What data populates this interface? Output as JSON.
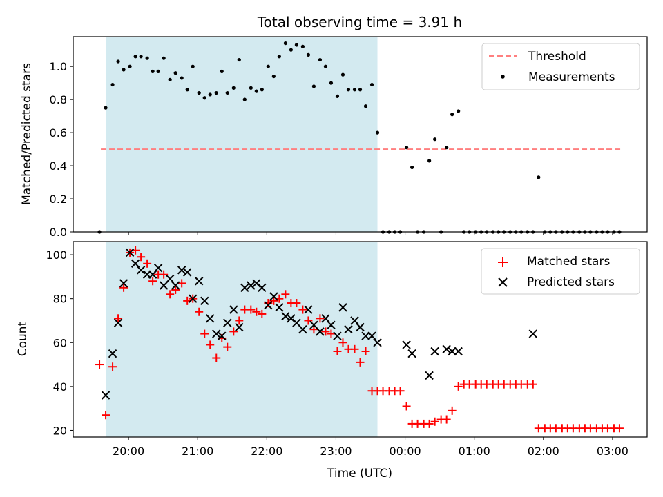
{
  "title": "Total observing time = 3.91 h",
  "chart_data": [
    {
      "type": "scatter",
      "panel": "top",
      "ylabel": "Matched/Predicted stars",
      "ylim": [
        0,
        1.18
      ],
      "yticks": [
        "0.0",
        "0.2",
        "0.4",
        "0.6",
        "0.8",
        "1.0"
      ],
      "xlim": [
        19.2,
        27.5
      ],
      "grid": false,
      "legend_position": "top-right",
      "shaded_interval": {
        "x_start": 19.67,
        "x_end": 23.6,
        "color": "#d3eaf0"
      },
      "threshold": {
        "name": "Threshold",
        "value": 0.5,
        "x_start": 19.6,
        "x_end": 27.15,
        "color": "#ff7f7f"
      },
      "series": [
        {
          "name": "Measurements",
          "color": "#000000",
          "marker": "dot",
          "x": [
            19.58,
            19.67,
            19.77,
            19.85,
            19.93,
            20.02,
            20.1,
            20.18,
            20.27,
            20.35,
            20.43,
            20.51,
            20.6,
            20.68,
            20.77,
            20.85,
            20.93,
            21.02,
            21.1,
            21.18,
            21.27,
            21.35,
            21.43,
            21.52,
            21.6,
            21.68,
            21.77,
            21.85,
            21.93,
            22.02,
            22.1,
            22.18,
            22.27,
            22.35,
            22.43,
            22.52,
            22.6,
            22.68,
            22.77,
            22.85,
            22.93,
            23.02,
            23.1,
            23.18,
            23.27,
            23.35,
            23.43,
            23.52,
            23.6,
            23.68,
            23.77,
            23.85,
            23.93,
            24.02,
            24.1,
            24.18,
            24.27,
            24.35,
            24.43,
            24.52,
            24.6,
            24.68,
            24.77,
            24.85,
            24.93,
            25.02,
            25.1,
            25.18,
            25.27,
            25.35,
            25.43,
            25.52,
            25.6,
            25.68,
            25.77,
            25.85,
            25.93,
            26.02,
            26.1,
            26.18,
            26.27,
            26.35,
            26.43,
            26.52,
            26.6,
            26.68,
            26.77,
            26.85,
            26.93,
            27.02,
            27.1
          ],
          "y": [
            0.0,
            0.75,
            0.89,
            1.03,
            0.98,
            1.0,
            1.06,
            1.06,
            1.05,
            0.97,
            0.97,
            1.05,
            0.92,
            0.96,
            0.93,
            0.86,
            1.0,
            0.84,
            0.81,
            0.83,
            0.84,
            0.97,
            0.84,
            0.87,
            1.04,
            0.8,
            0.87,
            0.85,
            0.86,
            1.0,
            0.94,
            1.06,
            1.14,
            1.1,
            1.13,
            1.12,
            1.07,
            0.88,
            1.04,
            1.0,
            0.9,
            0.82,
            0.95,
            0.86,
            0.86,
            0.86,
            0.76,
            0.89,
            0.6,
            0.0,
            0.0,
            0.0,
            0.0,
            0.51,
            0.39,
            0.0,
            0.0,
            0.43,
            0.56,
            0.0,
            0.51,
            0.71,
            0.73,
            0.0,
            0.0,
            0.0,
            0.0,
            0.0,
            0.0,
            0.0,
            0.0,
            0.0,
            0.0,
            0.0,
            0.0,
            0.0,
            0.33,
            0.0,
            0.0,
            0.0,
            0.0,
            0.0,
            0.0,
            0.0,
            0.0,
            0.0,
            0.0,
            0.0,
            0.0,
            0.0,
            0.0
          ]
        }
      ]
    },
    {
      "type": "scatter",
      "panel": "bottom",
      "xlabel": "Time (UTC)",
      "ylabel": "Count",
      "ylim": [
        17,
        106
      ],
      "yticks": [
        "20",
        "40",
        "60",
        "80",
        "100"
      ],
      "xlim": [
        19.2,
        27.5
      ],
      "xtick_values": [
        20,
        21,
        22,
        23,
        24,
        25,
        26,
        27
      ],
      "xtick_labels": [
        "20:00",
        "21:00",
        "22:00",
        "23:00",
        "00:00",
        "01:00",
        "02:00",
        "03:00"
      ],
      "grid": false,
      "legend_position": "top-right",
      "shaded_interval": {
        "x_start": 19.67,
        "x_end": 23.6,
        "color": "#d3eaf0"
      },
      "series": [
        {
          "name": "Matched stars",
          "color": "#ff0000",
          "marker": "plus",
          "x": [
            19.58,
            19.67,
            19.77,
            19.85,
            19.93,
            20.02,
            20.1,
            20.18,
            20.27,
            20.35,
            20.43,
            20.51,
            20.6,
            20.68,
            20.77,
            20.85,
            20.93,
            21.02,
            21.1,
            21.18,
            21.27,
            21.35,
            21.43,
            21.52,
            21.6,
            21.68,
            21.77,
            21.85,
            21.93,
            22.02,
            22.1,
            22.18,
            22.27,
            22.35,
            22.43,
            22.52,
            22.6,
            22.68,
            22.77,
            22.85,
            22.93,
            23.02,
            23.1,
            23.18,
            23.27,
            23.35,
            23.43,
            23.52,
            23.6,
            23.68,
            23.77,
            23.85,
            23.93,
            24.02,
            24.1,
            24.18,
            24.27,
            24.35,
            24.43,
            24.52,
            24.6,
            24.68,
            24.77,
            24.85,
            24.93,
            25.02,
            25.1,
            25.18,
            25.27,
            25.35,
            25.43,
            25.52,
            25.6,
            25.68,
            25.77,
            25.85,
            25.93,
            26.02,
            26.1,
            26.18,
            26.27,
            26.35,
            26.43,
            26.52,
            26.6,
            26.68,
            26.77,
            26.85,
            26.93,
            27.02,
            27.1
          ],
          "y": [
            50,
            27,
            49,
            71,
            85,
            101,
            102,
            99,
            96,
            88,
            91,
            91,
            82,
            84,
            87,
            79,
            80,
            74,
            64,
            59,
            53,
            62,
            58,
            65,
            70,
            75,
            75,
            74,
            73,
            78,
            79,
            80,
            82,
            78,
            78,
            75,
            70,
            66,
            71,
            65,
            64,
            56,
            60,
            57,
            57,
            51,
            56,
            38,
            38,
            38,
            38,
            38,
            38,
            31,
            23,
            23,
            23,
            23,
            24,
            25,
            25,
            29,
            40,
            41,
            41,
            41,
            41,
            41,
            41,
            41,
            41,
            41,
            41,
            41,
            41,
            41,
            21,
            21,
            21,
            21,
            21,
            21,
            21,
            21,
            21,
            21,
            21,
            21,
            21,
            21,
            21
          ]
        },
        {
          "name": "Predicted stars",
          "color": "#000000",
          "marker": "x",
          "x": [
            19.67,
            19.77,
            19.85,
            19.93,
            20.02,
            20.1,
            20.18,
            20.27,
            20.35,
            20.43,
            20.51,
            20.6,
            20.68,
            20.77,
            20.85,
            20.93,
            21.02,
            21.1,
            21.18,
            21.27,
            21.35,
            21.43,
            21.52,
            21.6,
            21.68,
            21.77,
            21.85,
            21.93,
            22.02,
            22.1,
            22.18,
            22.27,
            22.35,
            22.43,
            22.52,
            22.6,
            22.68,
            22.77,
            22.85,
            22.93,
            23.02,
            23.1,
            23.18,
            23.27,
            23.35,
            23.43,
            23.52,
            23.6,
            24.02,
            24.1,
            24.35,
            24.43,
            24.6,
            24.68,
            24.77,
            25.85
          ],
          "y": [
            36,
            55,
            69,
            87,
            101,
            96,
            93,
            91,
            91,
            94,
            86,
            89,
            86,
            93,
            92,
            80,
            88,
            79,
            71,
            64,
            63,
            69,
            75,
            67,
            85,
            86,
            87,
            85,
            77,
            81,
            76,
            72,
            71,
            69,
            66,
            75,
            68,
            65,
            71,
            68,
            63,
            76,
            66,
            70,
            67,
            63,
            63,
            60,
            59,
            55,
            45,
            56,
            57,
            56,
            56,
            64
          ]
        }
      ]
    }
  ]
}
